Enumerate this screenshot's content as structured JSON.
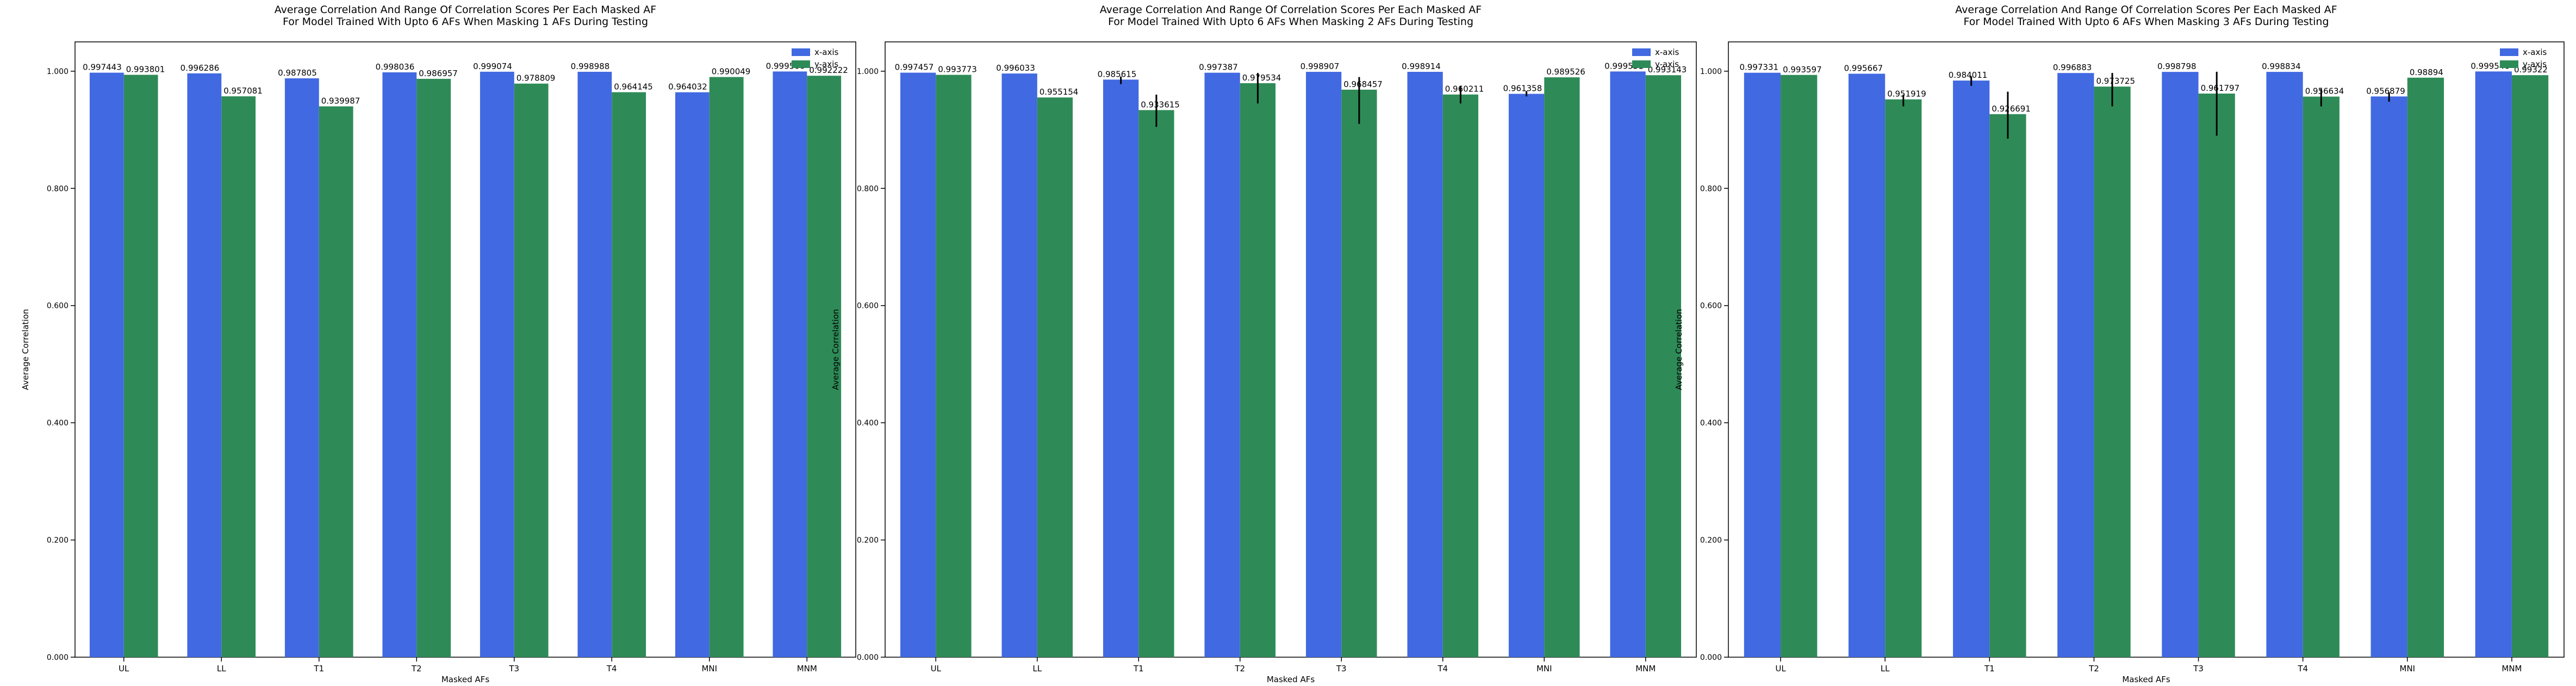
{
  "colors": {
    "x_axis": "#4169e1",
    "y_axis": "#2e8b57",
    "frame": "#000000"
  },
  "chart_data": [
    {
      "type": "bar",
      "title": [
        "Average Correlation And Range Of Correlation Scores Per Each Masked AF",
        "For Model Trained With Upto 6 AFs When Masking 1 AFs During Testing"
      ],
      "xlabel": "Masked AFs",
      "ylabel": "Average Correlation",
      "ylim": [
        0,
        1.05
      ],
      "yticks": [
        0.0,
        0.2,
        0.4,
        0.6,
        0.8,
        1.0
      ],
      "ytick_labels": [
        "0.000",
        "0.200",
        "0.400",
        "0.600",
        "0.800",
        "1.000"
      ],
      "legend_position": "top-right",
      "categories": [
        "UL",
        "LL",
        "T1",
        "T2",
        "T3",
        "T4",
        "MNI",
        "MNM"
      ],
      "series": [
        {
          "name": "x-axis",
          "color": "#4169e1",
          "values": [
            0.997443,
            0.996286,
            0.987805,
            0.998036,
            0.999074,
            0.998988,
            0.964032,
            0.999506
          ],
          "labels": [
            "0.997443",
            "0.996286",
            "0.987805",
            "0.998036",
            "0.999074",
            "0.998988",
            "0.964032",
            "0.999506"
          ],
          "err_low": [
            0.997443,
            0.996286,
            0.987805,
            0.998036,
            0.999074,
            0.998988,
            0.964032,
            0.999506
          ],
          "err_high": [
            0.997443,
            0.996286,
            0.987805,
            0.998036,
            0.999074,
            0.998988,
            0.964032,
            0.999506
          ]
        },
        {
          "name": "y-axis",
          "color": "#2e8b57",
          "values": [
            0.993801,
            0.957081,
            0.939987,
            0.986957,
            0.978809,
            0.964145,
            0.990049,
            0.992222
          ],
          "labels": [
            "0.993801",
            "0.957081",
            "0.939987",
            "0.986957",
            "0.978809",
            "0.964145",
            "0.990049",
            "0.992222"
          ],
          "err_low": [
            0.993801,
            0.957081,
            0.939987,
            0.986957,
            0.978809,
            0.964145,
            0.990049,
            0.992222
          ],
          "err_high": [
            0.993801,
            0.957081,
            0.939987,
            0.986957,
            0.978809,
            0.964145,
            0.990049,
            0.992222
          ]
        }
      ]
    },
    {
      "type": "bar",
      "title": [
        "Average Correlation And Range Of Correlation Scores Per Each Masked AF",
        "For Model Trained With Upto 6 AFs When Masking 2 AFs During Testing"
      ],
      "xlabel": "Masked AFs",
      "ylabel": "Average Correlation",
      "ylim": [
        0,
        1.05
      ],
      "yticks": [
        0.0,
        0.2,
        0.4,
        0.6,
        0.8,
        1.0
      ],
      "ytick_labels": [
        "0.000",
        "0.200",
        "0.400",
        "0.600",
        "0.800",
        "1.000"
      ],
      "legend_position": "top-right",
      "categories": [
        "UL",
        "LL",
        "T1",
        "T2",
        "T3",
        "T4",
        "MNI",
        "MNM"
      ],
      "series": [
        {
          "name": "x-axis",
          "color": "#4169e1",
          "values": [
            0.997457,
            0.996033,
            0.985615,
            0.997387,
            0.998907,
            0.998914,
            0.961358,
            0.999531
          ],
          "labels": [
            "0.997457",
            "0.996033",
            "0.985615",
            "0.997387",
            "0.998907",
            "0.998914",
            "0.961358",
            "0.999531"
          ],
          "err_low": [
            0.997457,
            0.996033,
            0.978,
            0.997387,
            0.998907,
            0.998914,
            0.957,
            0.999531
          ],
          "err_high": [
            0.997457,
            0.996033,
            0.991,
            0.997387,
            0.998907,
            0.998914,
            0.966,
            0.999531
          ]
        },
        {
          "name": "y-axis",
          "color": "#2e8b57",
          "values": [
            0.993773,
            0.955154,
            0.933615,
            0.979534,
            0.968457,
            0.960211,
            0.989526,
            0.993143
          ],
          "labels": [
            "0.993773",
            "0.955154",
            "0.933615",
            "0.979534",
            "0.968457",
            "0.960211",
            "0.989526",
            "0.993143"
          ],
          "err_low": [
            0.993773,
            0.955154,
            0.905,
            0.945,
            0.91,
            0.945,
            0.989526,
            0.993143
          ],
          "err_high": [
            0.993773,
            0.955154,
            0.96,
            0.997,
            0.99,
            0.975,
            0.989526,
            0.993143
          ]
        }
      ]
    },
    {
      "type": "bar",
      "title": [
        "Average Correlation And Range Of Correlation Scores Per Each Masked AF",
        "For Model Trained With Upto 6 AFs When Masking 3 AFs During Testing"
      ],
      "xlabel": "Masked AFs",
      "ylabel": "Average Correlation",
      "ylim": [
        0,
        1.05
      ],
      "yticks": [
        0.0,
        0.2,
        0.4,
        0.6,
        0.8,
        1.0
      ],
      "ytick_labels": [
        "0.000",
        "0.200",
        "0.400",
        "0.600",
        "0.800",
        "1.000"
      ],
      "legend_position": "top-right",
      "categories": [
        "UL",
        "LL",
        "T1",
        "T2",
        "T3",
        "T4",
        "MNI",
        "MNM"
      ],
      "series": [
        {
          "name": "x-axis",
          "color": "#4169e1",
          "values": [
            0.997331,
            0.995667,
            0.984011,
            0.996883,
            0.998798,
            0.998834,
            0.956879,
            0.999546
          ],
          "labels": [
            "0.997331",
            "0.995667",
            "0.984011",
            "0.996883",
            "0.998798",
            "0.998834",
            "0.956879",
            "0.999546"
          ],
          "err_low": [
            0.997331,
            0.995667,
            0.975,
            0.996883,
            0.998798,
            0.998834,
            0.948,
            0.999546
          ],
          "err_high": [
            0.997331,
            0.995667,
            0.991,
            0.996883,
            0.998798,
            0.998834,
            0.964,
            0.999546
          ]
        },
        {
          "name": "y-axis",
          "color": "#2e8b57",
          "values": [
            0.993597,
            0.951919,
            0.926691,
            0.973725,
            0.961797,
            0.956634,
            0.98894,
            0.99322
          ],
          "labels": [
            "0.993597",
            "0.951919",
            "0.926691",
            "0.973725",
            "0.961797",
            "0.956634",
            "0.98894",
            "0.99322"
          ],
          "err_low": [
            0.993597,
            0.94,
            0.885,
            0.94,
            0.89,
            0.94,
            0.98894,
            0.99322
          ],
          "err_high": [
            0.993597,
            0.96,
            0.965,
            0.997,
            0.999,
            0.97,
            0.98894,
            0.99322
          ]
        }
      ]
    }
  ]
}
